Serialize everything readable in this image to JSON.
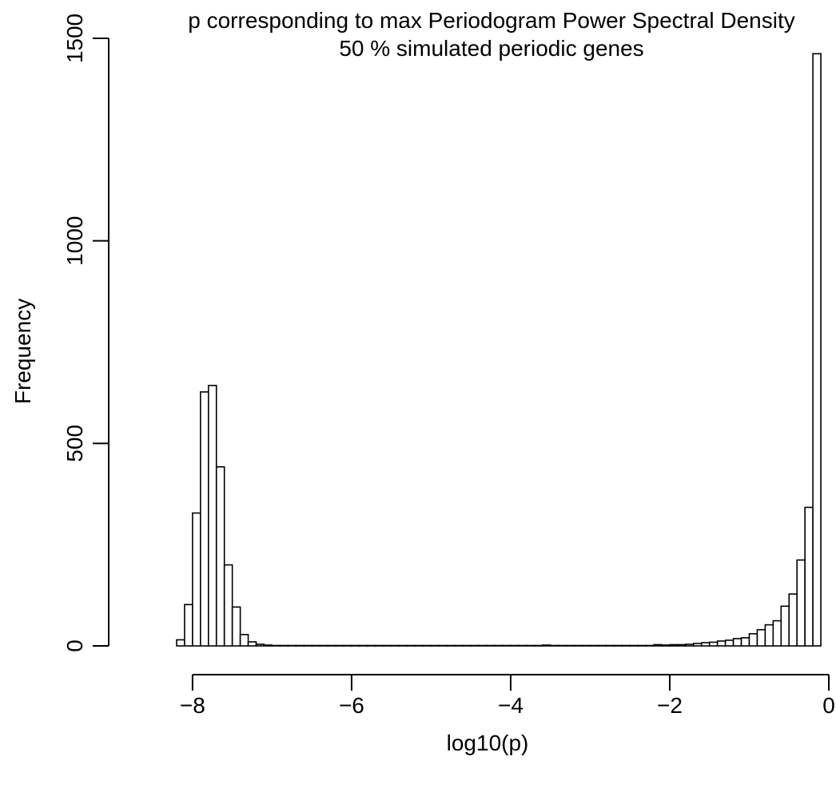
{
  "chart_data": {
    "type": "bar",
    "title": "p corresponding to max Periodogram Power Spectral Density",
    "subtitle": "50 % simulated periodic genes",
    "xlabel": "log10(p)",
    "ylabel": "Frequency",
    "xlim": [
      -8.2,
      0.0
    ],
    "ylim": [
      0,
      1500
    ],
    "xticks": [
      -8,
      -6,
      -4,
      -2,
      0
    ],
    "xtick_labels": [
      "−8",
      "−6",
      "−4",
      "−2",
      "0"
    ],
    "yticks": [
      0,
      500,
      1000,
      1500
    ],
    "ytick_labels": [
      "0",
      "500",
      "1000",
      "1500"
    ],
    "grid": false,
    "bin_width": 0.1,
    "bin_start": -8.2,
    "values": [
      15,
      102,
      328,
      627,
      643,
      442,
      200,
      96,
      28,
      10,
      4,
      2,
      1,
      1,
      1,
      1,
      1,
      1,
      1,
      1,
      1,
      1,
      1,
      1,
      1,
      1,
      1,
      1,
      1,
      1,
      1,
      1,
      1,
      1,
      1,
      1,
      1,
      1,
      1,
      1,
      1,
      1,
      1,
      1,
      1,
      1,
      2,
      1,
      1,
      1,
      1,
      1,
      1,
      1,
      1,
      1,
      1,
      1,
      1,
      1,
      3,
      2,
      3,
      3,
      4,
      6,
      8,
      9,
      12,
      14,
      18,
      20,
      30,
      40,
      52,
      62,
      98,
      128,
      212,
      342,
      1462
    ]
  }
}
